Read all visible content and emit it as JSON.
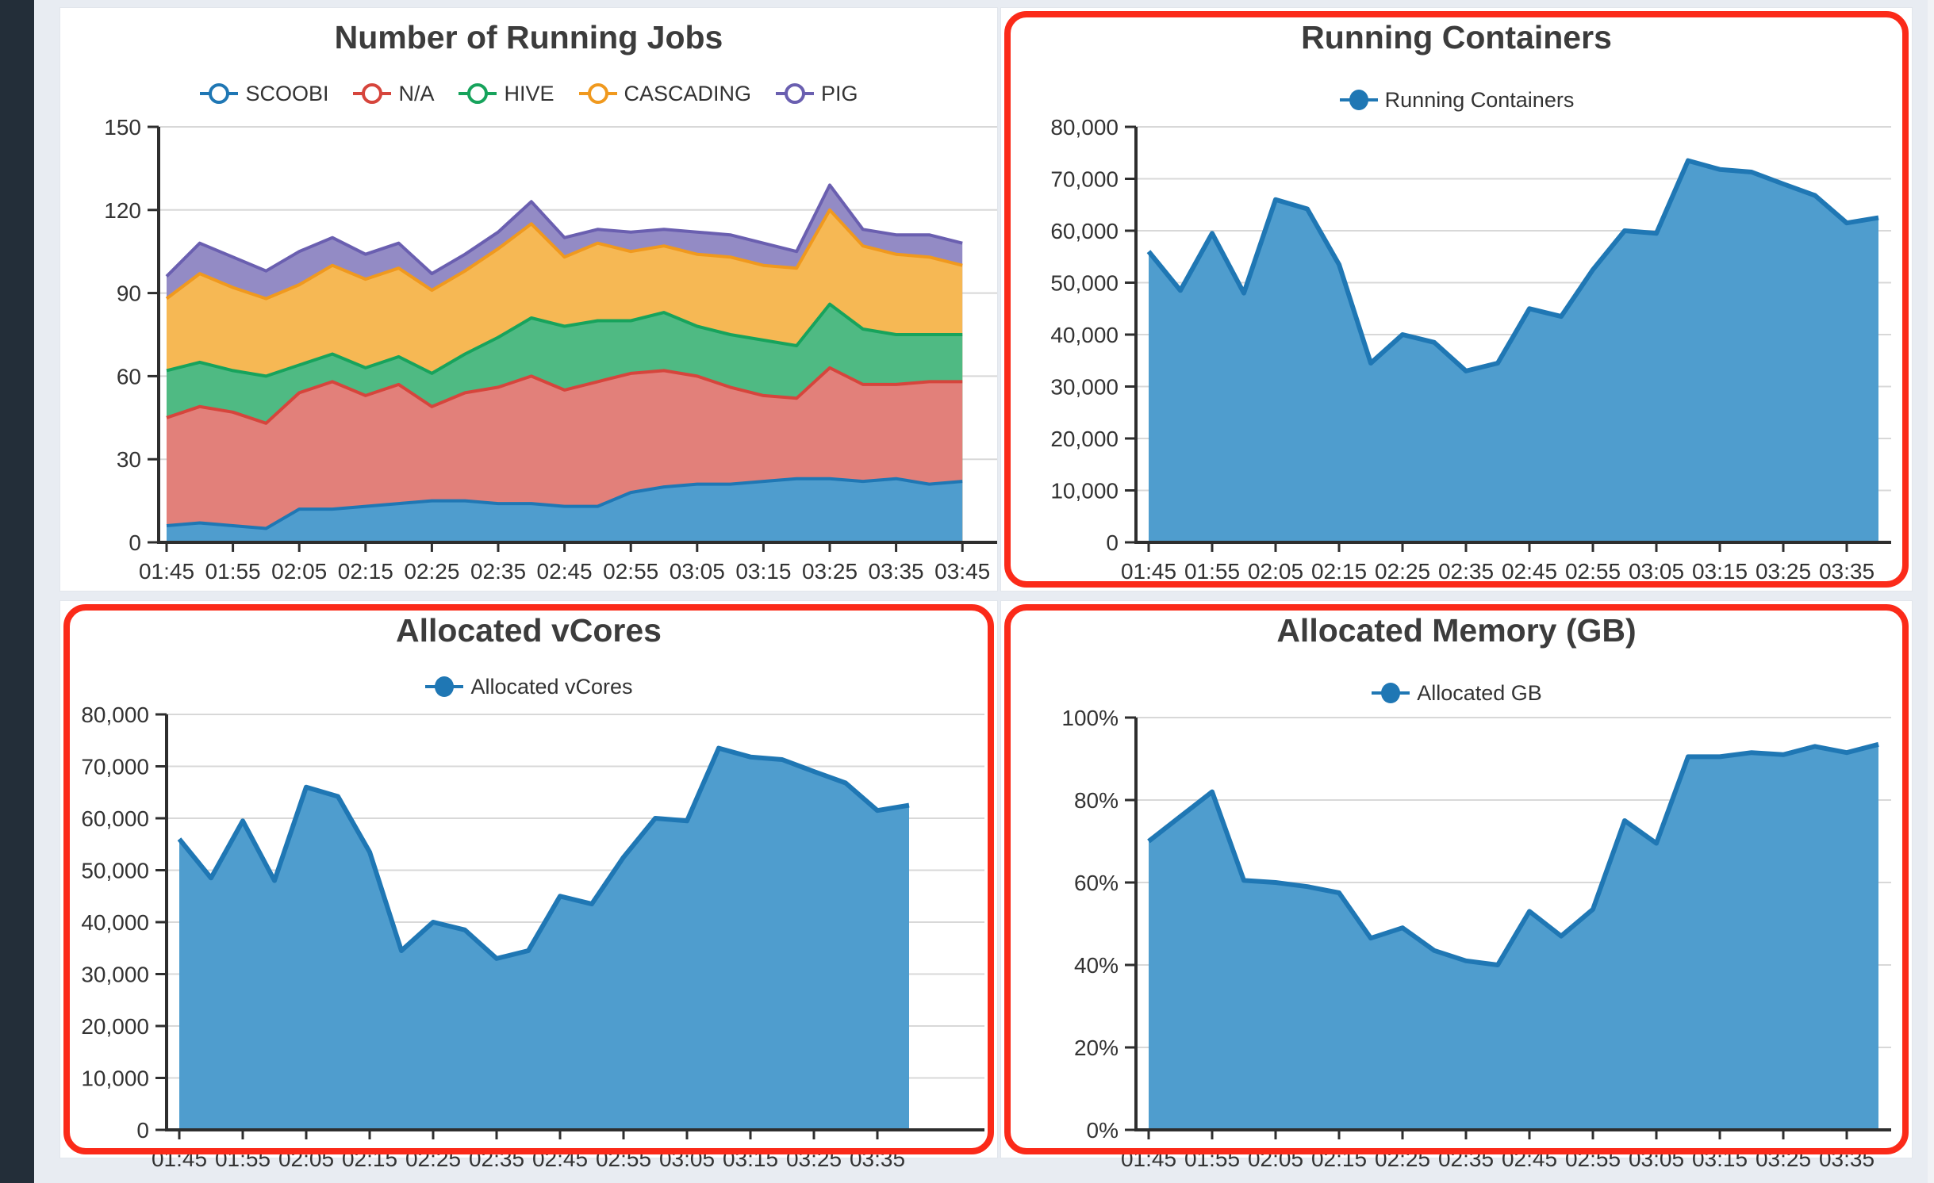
{
  "page": {
    "background": "#e8ecf2",
    "sidebar_color": "#232e39",
    "panel_color": "#ffffff",
    "highlight_border_color": "#fb2a19",
    "grid_color": "#d8d8d8",
    "axis_color": "#2e2e2e"
  },
  "chart_data": [
    {
      "type": "area",
      "variant": "stacked",
      "title": "Number of Running Jobs",
      "highlighted": false,
      "legend_position": "top",
      "grid": true,
      "ylim": [
        0,
        150
      ],
      "y_tick_values": [
        0,
        30,
        60,
        90,
        120,
        150
      ],
      "y_tick_labels": [
        "0",
        "30",
        "60",
        "90",
        "120",
        "150"
      ],
      "x": [
        "01:45",
        "01:50",
        "01:55",
        "02:00",
        "02:05",
        "02:10",
        "02:15",
        "02:20",
        "02:25",
        "02:30",
        "02:35",
        "02:40",
        "02:45",
        "02:50",
        "02:55",
        "03:00",
        "03:05",
        "03:10",
        "03:15",
        "03:20",
        "03:25",
        "03:30",
        "03:35",
        "03:40",
        "03:45"
      ],
      "x_tick_labels": [
        "01:45",
        "01:55",
        "02:05",
        "02:15",
        "02:25",
        "02:35",
        "02:45",
        "02:55",
        "03:05",
        "03:15",
        "03:25",
        "03:35",
        "03:45"
      ],
      "series": [
        {
          "name": "SCOOBI",
          "color": "#1f77b4",
          "fill": "#4f9dce",
          "values": [
            6,
            7,
            6,
            5,
            12,
            12,
            13,
            14,
            15,
            15,
            14,
            14,
            13,
            13,
            18,
            20,
            21,
            21,
            22,
            23,
            23,
            22,
            23,
            21,
            22
          ]
        },
        {
          "name": "N/A",
          "color": "#d6453c",
          "fill": "#e2807a",
          "values": [
            39,
            42,
            41,
            38,
            42,
            46,
            40,
            43,
            34,
            39,
            42,
            46,
            42,
            45,
            43,
            42,
            39,
            35,
            31,
            29,
            40,
            35,
            34,
            37,
            36
          ]
        },
        {
          "name": "HIVE",
          "color": "#17a35c",
          "fill": "#4fba83",
          "values": [
            17,
            16,
            15,
            17,
            10,
            10,
            10,
            10,
            12,
            14,
            18,
            21,
            23,
            22,
            19,
            21,
            18,
            19,
            20,
            19,
            23,
            20,
            18,
            17,
            17
          ]
        },
        {
          "name": "CASCADING",
          "color": "#f0991e",
          "fill": "#f6b854",
          "values": [
            26,
            32,
            30,
            28,
            29,
            32,
            32,
            32,
            30,
            30,
            32,
            34,
            25,
            28,
            25,
            24,
            26,
            28,
            27,
            28,
            34,
            30,
            29,
            28,
            25
          ]
        },
        {
          "name": "PIG",
          "color": "#6a5fb0",
          "fill": "#938bc5",
          "values": [
            8,
            11,
            11,
            10,
            12,
            10,
            9,
            9,
            6,
            6,
            6,
            8,
            7,
            5,
            7,
            6,
            8,
            8,
            8,
            6,
            9,
            6,
            7,
            8,
            8
          ]
        }
      ]
    },
    {
      "type": "area",
      "title": "Running Containers",
      "highlighted": true,
      "legend_position": "top",
      "grid": true,
      "ylim": [
        0,
        80000
      ],
      "y_tick_values": [
        0,
        10000,
        20000,
        30000,
        40000,
        50000,
        60000,
        70000,
        80000
      ],
      "y_tick_labels": [
        "0",
        "10,000",
        "20,000",
        "30,000",
        "40,000",
        "50,000",
        "60,000",
        "70,000",
        "80,000"
      ],
      "x": [
        "01:45",
        "01:50",
        "01:55",
        "02:00",
        "02:05",
        "02:10",
        "02:15",
        "02:20",
        "02:25",
        "02:30",
        "02:35",
        "02:40",
        "02:45",
        "02:50",
        "02:55",
        "03:00",
        "03:05",
        "03:10",
        "03:15",
        "03:20",
        "03:25",
        "03:30",
        "03:35",
        "03:40"
      ],
      "x_tick_labels": [
        "01:45",
        "01:55",
        "02:05",
        "02:15",
        "02:25",
        "02:35",
        "02:45",
        "02:55",
        "03:05",
        "03:15",
        "03:25",
        "03:35"
      ],
      "series": [
        {
          "name": "Running Containers",
          "color": "#1f77b4",
          "fill": "#4f9dce",
          "values": [
            56000,
            48500,
            59500,
            48000,
            66000,
            64200,
            53500,
            34500,
            40000,
            38500,
            33000,
            34500,
            45000,
            43500,
            52500,
            60000,
            59500,
            73500,
            71800,
            71300,
            69000,
            66800,
            61500,
            62500
          ]
        }
      ]
    },
    {
      "type": "area",
      "title": "Allocated vCores",
      "highlighted": true,
      "legend_position": "top",
      "grid": true,
      "ylim": [
        0,
        80000
      ],
      "y_tick_values": [
        0,
        10000,
        20000,
        30000,
        40000,
        50000,
        60000,
        70000,
        80000
      ],
      "y_tick_labels": [
        "0",
        "10,000",
        "20,000",
        "30,000",
        "40,000",
        "50,000",
        "60,000",
        "70,000",
        "80,000"
      ],
      "x": [
        "01:45",
        "01:50",
        "01:55",
        "02:00",
        "02:05",
        "02:10",
        "02:15",
        "02:20",
        "02:25",
        "02:30",
        "02:35",
        "02:40",
        "02:45",
        "02:50",
        "02:55",
        "03:00",
        "03:05",
        "03:10",
        "03:15",
        "03:20",
        "03:25",
        "03:30",
        "03:35",
        "03:40"
      ],
      "x_tick_labels": [
        "01:45",
        "01:55",
        "02:05",
        "02:15",
        "02:25",
        "02:35",
        "02:45",
        "02:55",
        "03:05",
        "03:15",
        "03:25",
        "03:35"
      ],
      "series": [
        {
          "name": "Allocated vCores",
          "color": "#1f77b4",
          "fill": "#4f9dce",
          "values": [
            56000,
            48500,
            59500,
            48000,
            66000,
            64200,
            53500,
            34500,
            40000,
            38500,
            33000,
            34500,
            45000,
            43500,
            52500,
            60000,
            59500,
            73500,
            71800,
            71300,
            69000,
            66800,
            61500,
            62500
          ]
        }
      ]
    },
    {
      "type": "area",
      "title": "Allocated Memory (GB)",
      "highlighted": true,
      "legend_position": "top",
      "grid": true,
      "ylim": [
        0,
        100
      ],
      "y_tick_values": [
        0,
        20,
        40,
        60,
        80,
        100
      ],
      "y_tick_labels": [
        "0%",
        "20%",
        "40%",
        "60%",
        "80%",
        "100%"
      ],
      "x": [
        "01:45",
        "01:50",
        "01:55",
        "02:00",
        "02:05",
        "02:10",
        "02:15",
        "02:20",
        "02:25",
        "02:30",
        "02:35",
        "02:40",
        "02:45",
        "02:50",
        "02:55",
        "03:00",
        "03:05",
        "03:10",
        "03:15",
        "03:20",
        "03:25",
        "03:30",
        "03:35",
        "03:40"
      ],
      "x_tick_labels": [
        "01:45",
        "01:55",
        "02:05",
        "02:15",
        "02:25",
        "02:35",
        "02:45",
        "02:55",
        "03:05",
        "03:15",
        "03:25",
        "03:35"
      ],
      "series": [
        {
          "name": "Allocated GB",
          "color": "#1f77b4",
          "fill": "#4f9dce",
          "values": [
            70,
            76,
            82,
            60.5,
            60,
            59,
            57.5,
            46.5,
            49,
            43.5,
            41,
            40,
            53,
            47,
            53.5,
            75,
            69.5,
            90.5,
            90.5,
            91.5,
            91,
            93,
            91.5,
            93.5
          ]
        }
      ]
    }
  ]
}
